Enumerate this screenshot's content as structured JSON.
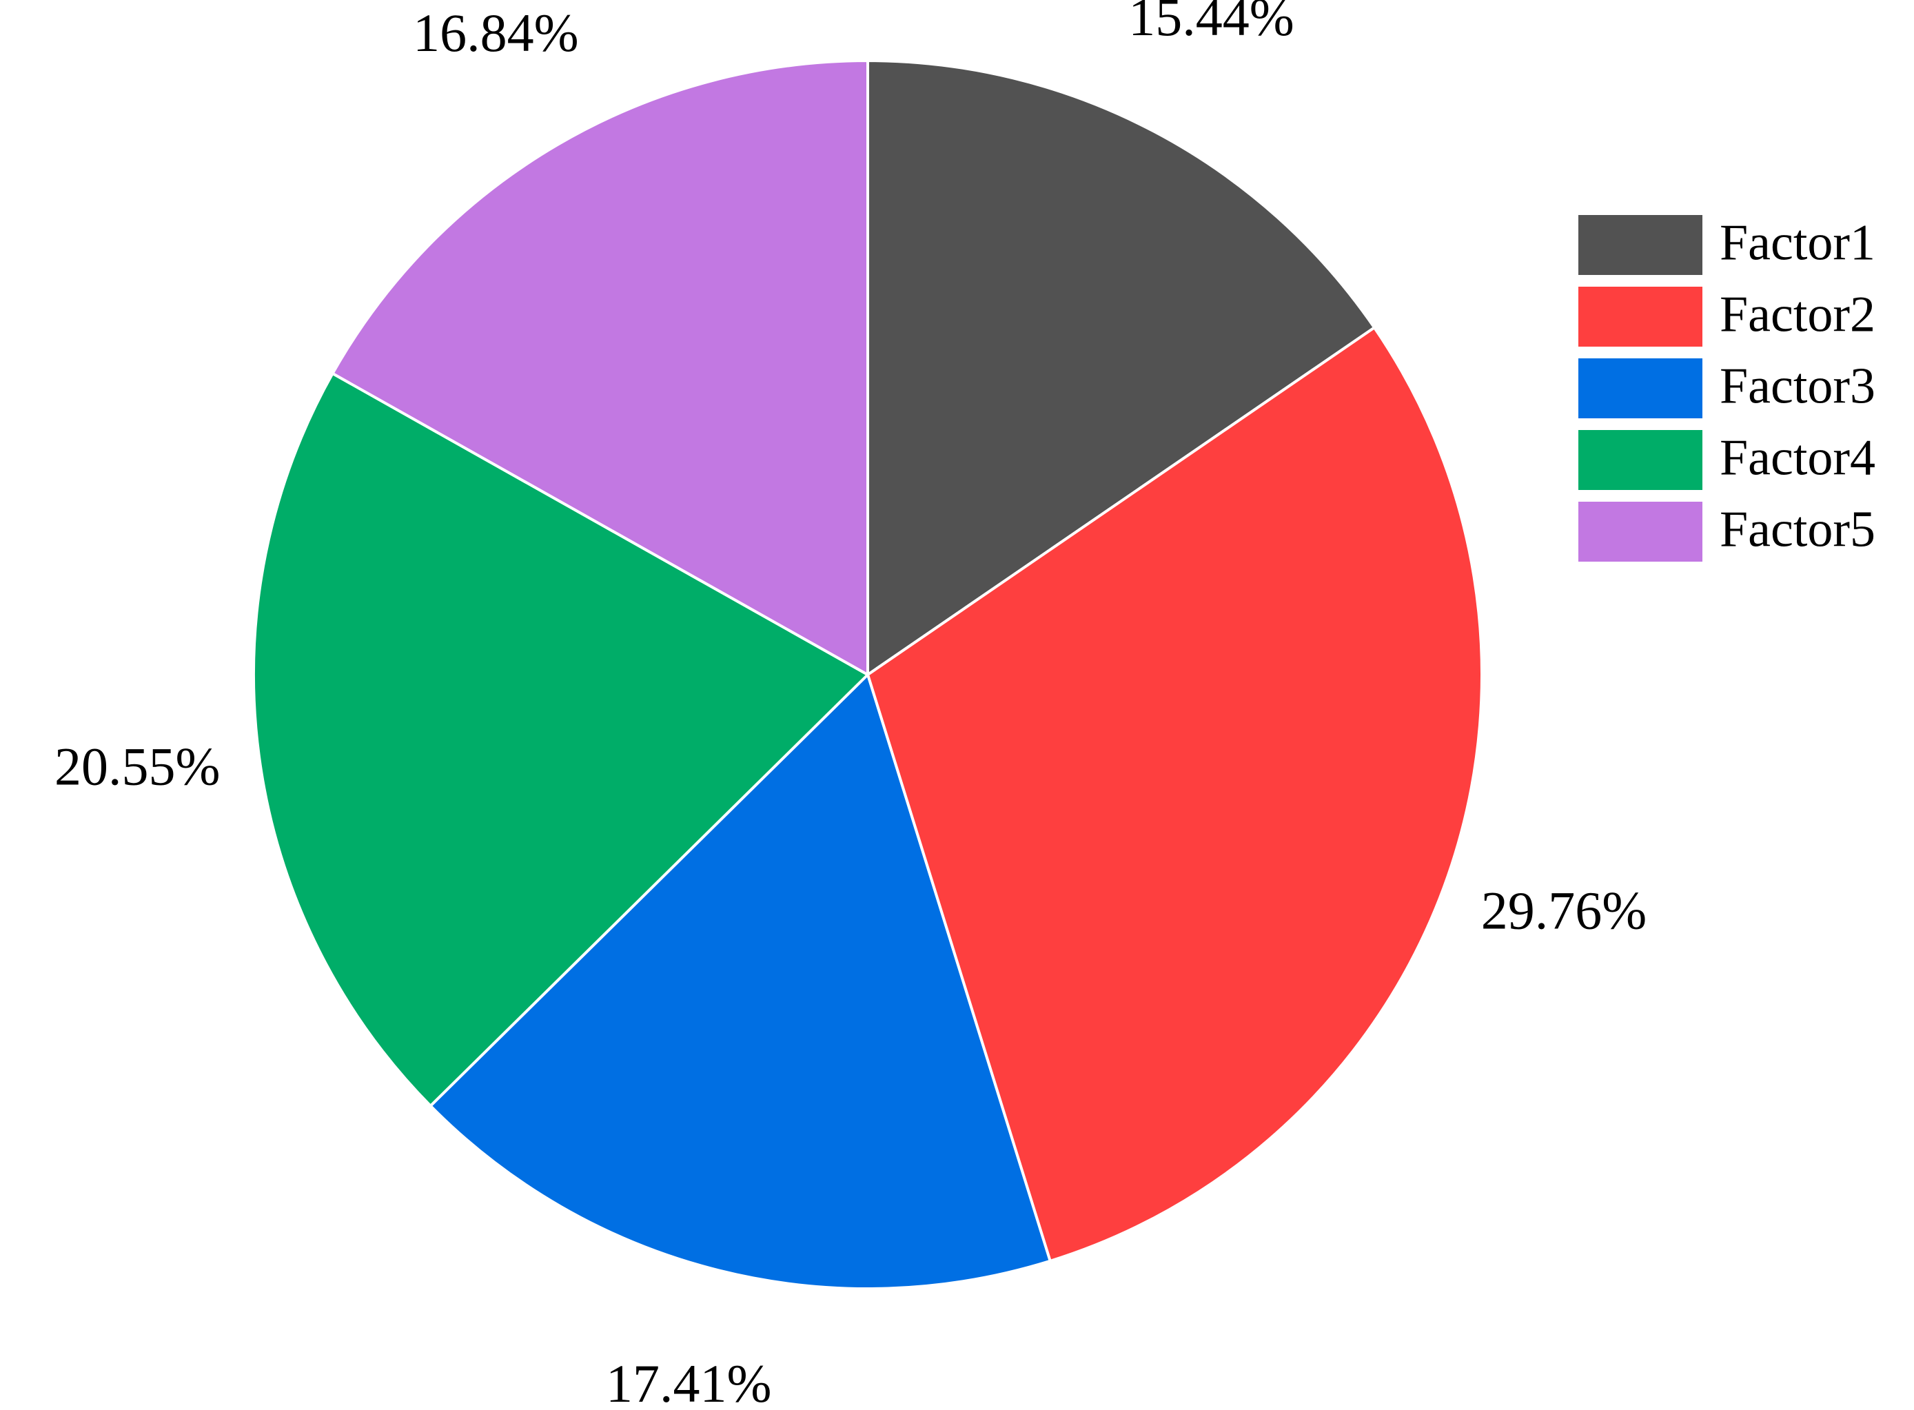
{
  "chart_data": {
    "type": "pie",
    "categories": [
      "Factor1",
      "Factor2",
      "Factor3",
      "Factor4",
      "Factor5"
    ],
    "values": [
      15.44,
      29.76,
      17.41,
      20.55,
      16.84
    ],
    "value_labels": [
      "15.44%",
      "29.76%",
      "17.41%",
      "20.55%",
      "16.84%"
    ],
    "colors": [
      "#525252",
      "#fe3f3f",
      "#006fe3",
      "#00ad68",
      "#c278e2"
    ],
    "legend": "right"
  }
}
